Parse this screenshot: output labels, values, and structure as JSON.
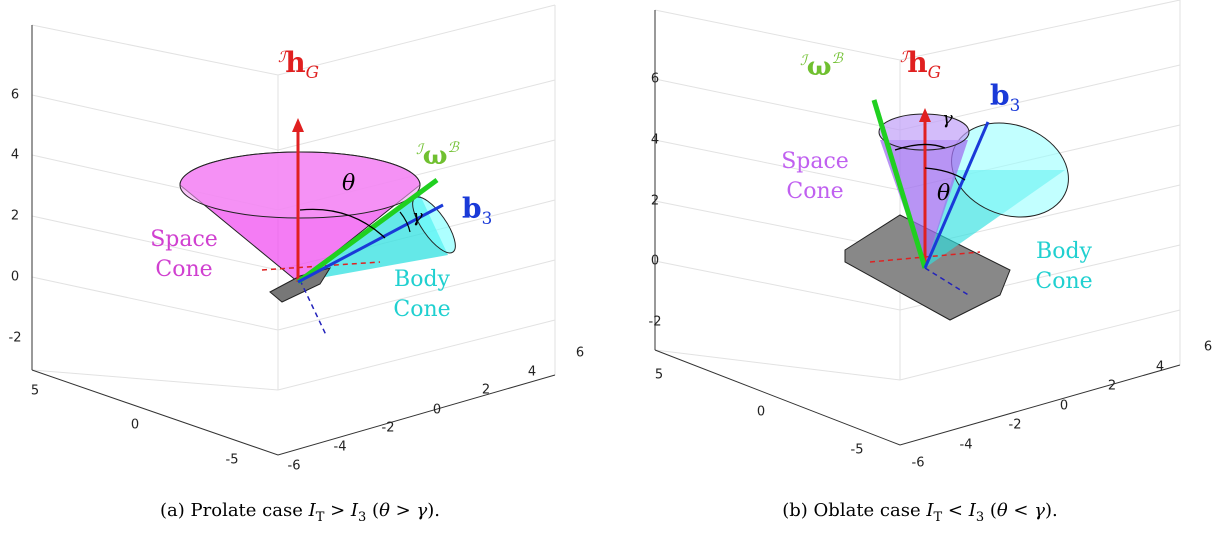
{
  "panels": [
    {
      "z_ticks": [
        6,
        4,
        2,
        0,
        -2
      ],
      "x_ticks": [
        5,
        0,
        -5
      ],
      "y_ticks": [
        -6,
        -4,
        -2,
        0,
        2,
        4,
        6
      ],
      "h_label": {
        "pre": "ℐ",
        "main": "h",
        "sub": "G"
      },
      "omega_label": {
        "pre": "ℐ",
        "main": "ω",
        "sup": "ℬ"
      },
      "b_label": {
        "main": "b",
        "sub": "3"
      },
      "theta": "θ",
      "gamma": "γ",
      "space_cone": [
        "Space",
        "Cone"
      ],
      "body_cone": [
        "Body",
        "Cone"
      ],
      "caption": [
        {
          "t": "(a) Prolate case "
        },
        {
          "t": "I",
          "i": true
        },
        {
          "t": "T",
          "sub": true
        },
        {
          "t": " > "
        },
        {
          "t": "I",
          "i": true
        },
        {
          "t": "3",
          "sub": true
        },
        {
          "t": " ("
        },
        {
          "t": "θ",
          "i": true
        },
        {
          "t": " > "
        },
        {
          "t": "γ",
          "i": true
        },
        {
          "t": ")."
        }
      ]
    },
    {
      "z_ticks": [
        6,
        4,
        2,
        0,
        -2
      ],
      "x_ticks": [
        5,
        0,
        -5
      ],
      "y_ticks": [
        -6,
        -4,
        -2,
        0,
        2,
        4,
        6
      ],
      "h_label": {
        "pre": "ℐ",
        "main": "h",
        "sub": "G"
      },
      "omega_label": {
        "pre": "ℐ",
        "main": "ω",
        "sup": "ℬ"
      },
      "b_label": {
        "main": "b",
        "sub": "3"
      },
      "theta": "θ",
      "gamma": "γ",
      "space_cone": [
        "Space",
        "Cone"
      ],
      "body_cone": [
        "Body",
        "Cone"
      ],
      "caption": [
        {
          "t": "(b) Oblate case "
        },
        {
          "t": "I",
          "i": true
        },
        {
          "t": "T",
          "sub": true
        },
        {
          "t": " < "
        },
        {
          "t": "I",
          "i": true
        },
        {
          "t": "3",
          "sub": true
        },
        {
          "t": " ("
        },
        {
          "t": "θ",
          "i": true
        },
        {
          "t": " < "
        },
        {
          "t": "γ",
          "i": true
        },
        {
          "t": ")."
        }
      ]
    }
  ]
}
